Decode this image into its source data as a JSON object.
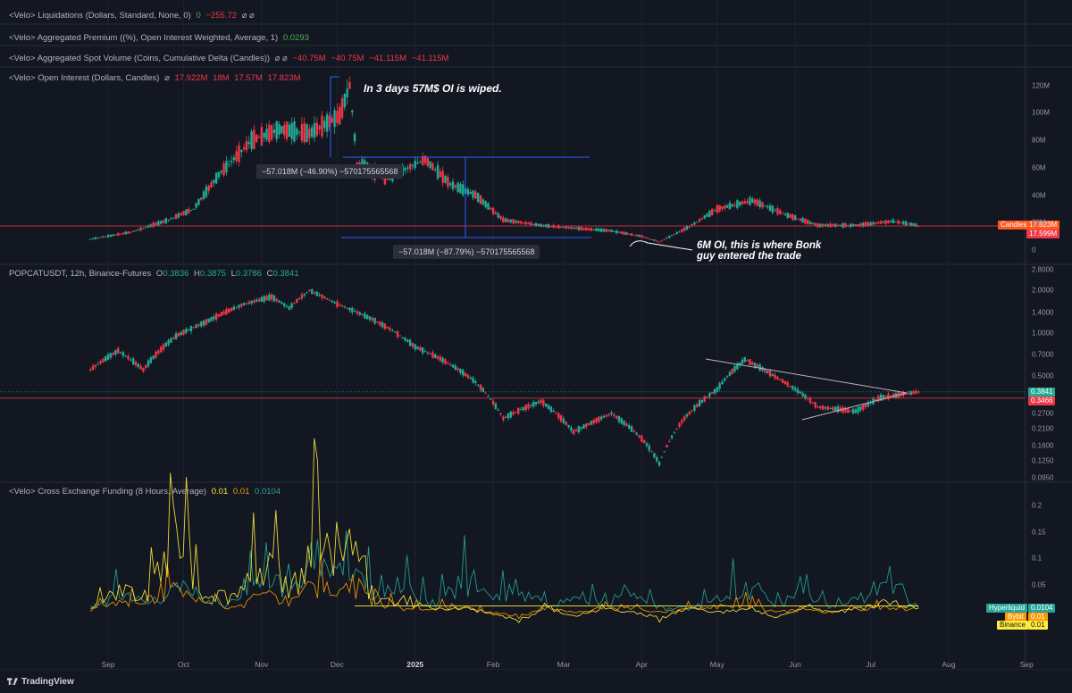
{
  "panes": {
    "liquidations": {
      "title": "<Velo> Liquidations (Dollars, Standard, None, 0)",
      "v1": "0",
      "v2": "−255.72",
      "tail": "⌀ ⌀"
    },
    "premium": {
      "title": "<Velo> Aggregated Premium ((%), Open Interest Weighted, Average, 1)",
      "v1": "0.0293"
    },
    "spot": {
      "title": "<Velo> Aggregated Spot Volume (Coins, Cumulative Delta (Candles))",
      "pre": "⌀ ⌀",
      "v1": "−40.75M",
      "v2": "−40.75M",
      "v3": "−41.115M",
      "v4": "−41.115M"
    },
    "oi": {
      "title": "<Velo> Open Interest (Dollars, Candles)",
      "pre": "⌀",
      "v1": "17.922M",
      "v2": "18M",
      "v3": "17.57M",
      "v4": "17.823M"
    },
    "price": {
      "title": "POPCATUSDT, 12h, Binance-Futures",
      "o_label": "O",
      "o": "0.3836",
      "h_label": "H",
      "h": "0.3875",
      "l_label": "L",
      "l": "0.3786",
      "c_label": "C",
      "c": "0.3841"
    },
    "funding": {
      "title": "<Velo> Cross Exchange Funding (8 Hours, Average)",
      "v1": "0.01",
      "v2": "0.01",
      "v3": "0.0104"
    }
  },
  "annotations": {
    "wipe_note": "In 3 days 57M$ OI is wiped.",
    "entry_note_1": "6M OI, this is where Bonk",
    "entry_note_2": "guy entered the trade",
    "measure_1": "−57.018M (−46.90%) −5701755655​68",
    "measure_2": "−57.018M (−87.79%) −570175565568"
  },
  "axis_badges": {
    "oi_name": "Candles",
    "oi_value": "17.823M",
    "oi_ref": "17.599M",
    "price_last": "0.3841",
    "price_ref": "0.3466",
    "hyperliquid_name": "Hyperliquid",
    "hyperliquid_value": "0.0104",
    "bybit_name": "Bybit",
    "bybit_value": "0.01",
    "binance_name": "Binance",
    "binance_value": "0.01"
  },
  "x_axis": {
    "labels": [
      "Sep",
      "Oct",
      "Nov",
      "Dec",
      "2025",
      "Feb",
      "Mar",
      "Apr",
      "May",
      "Jun",
      "Jul",
      "Aug",
      "Sep"
    ]
  },
  "footer": {
    "brand": "TradingView"
  },
  "colors": {
    "up": "#22ab94",
    "down": "#f23645",
    "accent": "#2962ff",
    "hyperliquid": "#26a69a",
    "bybit": "#ff9800",
    "binance": "#ffeb3b"
  },
  "chart_data": [
    {
      "type": "line",
      "title": "<Velo> Open Interest (Dollars, Candles)",
      "ylabels": [
        "120M",
        "100M",
        "80M",
        "60M",
        "40M",
        "20M",
        "0"
      ],
      "ylim": [
        0,
        125000000
      ],
      "x": [
        "2024-08-25",
        "2024-09-10",
        "2024-09-25",
        "2024-10-05",
        "2024-10-15",
        "2024-10-28",
        "2024-11-08",
        "2024-11-20",
        "2024-12-02",
        "2024-12-06",
        "2024-12-09",
        "2024-12-20",
        "2025-01-05",
        "2025-01-15",
        "2025-01-25",
        "2025-02-05",
        "2025-02-20",
        "2025-03-05",
        "2025-03-20",
        "2025-04-01",
        "2025-04-08",
        "2025-04-20",
        "2025-05-01",
        "2025-05-15",
        "2025-05-28",
        "2025-06-10",
        "2025-06-25",
        "2025-07-10",
        "2025-07-20"
      ],
      "values": [
        8000000,
        13000000,
        22000000,
        30000000,
        55000000,
        80000000,
        88000000,
        85000000,
        98000000,
        120000000,
        63000000,
        52000000,
        66000000,
        48000000,
        40000000,
        22000000,
        18000000,
        16000000,
        14000000,
        10000000,
        6000000,
        17000000,
        30000000,
        36000000,
        26000000,
        18000000,
        18000000,
        21000000,
        17823000
      ]
    },
    {
      "type": "line",
      "title": "POPCATUSDT, 12h, Binance-Futures",
      "ylabels": [
        "2.8000",
        "2.0000",
        "1.4000",
        "1.0000",
        "0.7000",
        "0.5000",
        "0.3841",
        "0.2700",
        "0.2100",
        "0.1600",
        "0.1250",
        "0.0950"
      ],
      "ylim": [
        0.095,
        2.8
      ],
      "x": [
        "2024-08-25",
        "2024-09-05",
        "2024-09-15",
        "2024-09-28",
        "2024-10-10",
        "2024-10-25",
        "2024-11-05",
        "2024-11-12",
        "2024-11-20",
        "2024-12-01",
        "2024-12-15",
        "2025-01-01",
        "2025-01-15",
        "2025-01-25",
        "2025-02-05",
        "2025-02-20",
        "2025-03-05",
        "2025-03-20",
        "2025-04-01",
        "2025-04-08",
        "2025-04-18",
        "2025-05-01",
        "2025-05-12",
        "2025-05-25",
        "2025-06-10",
        "2025-06-25",
        "2025-07-05",
        "2025-07-20"
      ],
      "values": [
        0.55,
        0.75,
        0.55,
        0.95,
        1.2,
        1.6,
        1.8,
        1.5,
        2.0,
        1.6,
        1.25,
        0.8,
        0.6,
        0.45,
        0.25,
        0.33,
        0.2,
        0.27,
        0.18,
        0.12,
        0.25,
        0.4,
        0.65,
        0.48,
        0.3,
        0.28,
        0.35,
        0.3841
      ]
    },
    {
      "type": "line",
      "title": "<Velo> Cross Exchange Funding (8 Hours, Average)",
      "ylabels": [
        "0.2",
        "0.15",
        "0.1",
        "0.05",
        "0"
      ],
      "ylim": [
        -0.06,
        0.2
      ],
      "series": [
        {
          "name": "Hyperliquid",
          "values": [
            0.01,
            0.04,
            0.02,
            0.06,
            0.03,
            0.02,
            0.08,
            0.05,
            0.12,
            0.14,
            0.03,
            0.05,
            0.02,
            0.07,
            0.03,
            0.06,
            0.01,
            0.04,
            0.02,
            0.05,
            0.01,
            0.01,
            0.03,
            0.06,
            0.02,
            0.04,
            0.01,
            0.03,
            0.08,
            0.0104
          ]
        },
        {
          "name": "Bybit",
          "values": [
            0.01,
            0.02,
            0.03,
            0.05,
            0.02,
            0.01,
            0.04,
            0.03,
            0.06,
            0.07,
            0.02,
            0.01,
            0.01,
            0.02,
            0.0,
            -0.01,
            0.01,
            0.0,
            0.01,
            0.01,
            0.0,
            0.01,
            0.01,
            0.02,
            0.0,
            0.01,
            0.0,
            0.01,
            0.01,
            0.01
          ]
        },
        {
          "name": "Binance",
          "values": [
            0.01,
            0.05,
            0.04,
            0.18,
            0.05,
            0.03,
            0.12,
            0.06,
            0.14,
            0.15,
            0.03,
            0.02,
            0.01,
            0.01,
            0.0,
            -0.02,
            0.01,
            -0.01,
            0.01,
            0.0,
            -0.01,
            0.01,
            0.0,
            0.01,
            -0.01,
            0.01,
            0.0,
            0.01,
            0.02,
            0.01
          ]
        }
      ]
    }
  ]
}
